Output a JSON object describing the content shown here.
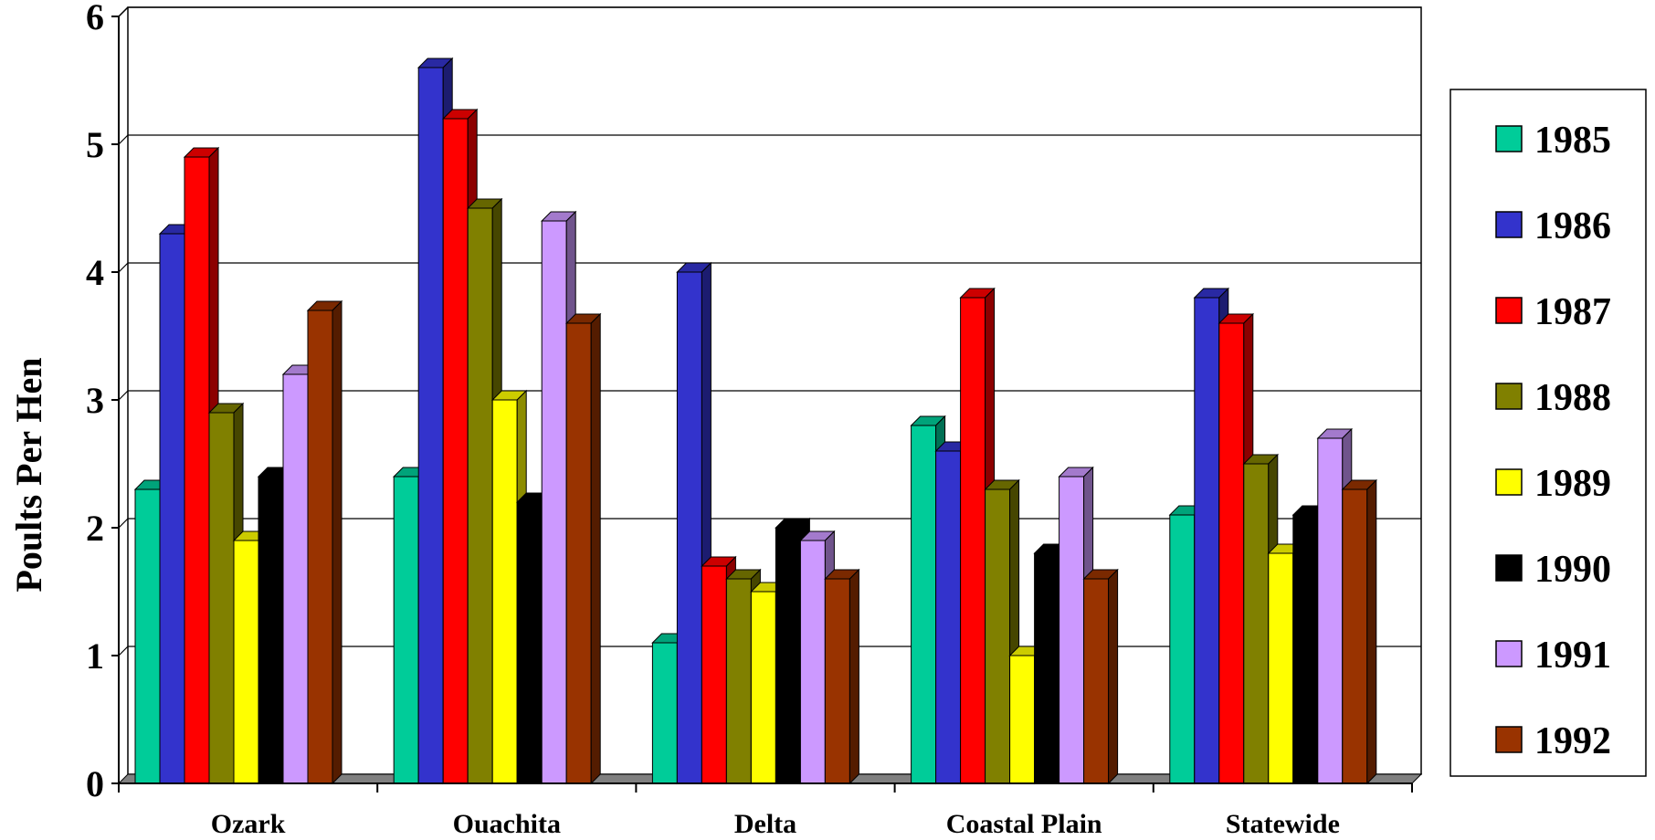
{
  "chart_data": {
    "type": "bar",
    "ylabel": "Poults Per Hen",
    "xlabel": "",
    "ylim": [
      0,
      6
    ],
    "yticks": [
      "0",
      "1",
      "2",
      "3",
      "4",
      "5",
      "6"
    ],
    "grid": true,
    "legend_position": "right",
    "categories": [
      "Ozark",
      "Ouachita",
      "Delta",
      "Coastal Plain",
      "Statewide"
    ],
    "series": [
      {
        "name": "1985",
        "color": "#00cc99",
        "values": [
          2.3,
          2.4,
          1.1,
          2.8,
          2.1
        ]
      },
      {
        "name": "1986",
        "color": "#3333cc",
        "values": [
          4.3,
          5.6,
          4.0,
          2.6,
          3.8
        ]
      },
      {
        "name": "1987",
        "color": "#ff0000",
        "values": [
          4.9,
          5.2,
          1.7,
          3.8,
          3.6
        ]
      },
      {
        "name": "1988",
        "color": "#808000",
        "values": [
          2.9,
          4.5,
          1.6,
          2.3,
          2.5
        ]
      },
      {
        "name": "1989",
        "color": "#ffff00",
        "values": [
          1.9,
          3.0,
          1.5,
          1.0,
          1.8
        ]
      },
      {
        "name": "1990",
        "color": "#000000",
        "values": [
          2.4,
          2.2,
          2.0,
          1.8,
          2.1
        ]
      },
      {
        "name": "1991",
        "color": "#cc99ff",
        "values": [
          3.2,
          4.4,
          1.9,
          2.4,
          2.7
        ]
      },
      {
        "name": "1992",
        "color": "#993300",
        "values": [
          3.7,
          3.6,
          1.6,
          1.6,
          2.3
        ]
      }
    ]
  }
}
